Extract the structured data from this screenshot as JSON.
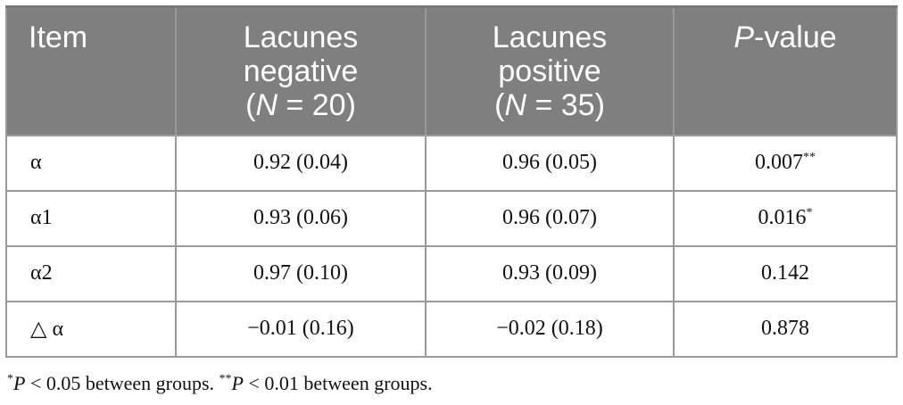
{
  "table": {
    "header": {
      "item": "Item",
      "neg_line1": "Lacunes",
      "neg_line2": "negative",
      "neg_n_open": "(",
      "neg_n_italic": "N",
      "neg_n_rest": " = 20)",
      "pos_line1": "Lacunes",
      "pos_line2": "positive",
      "pos_n_open": "(",
      "pos_n_italic": "N",
      "pos_n_rest": " = 35)",
      "p_italic": "P",
      "p_rest": "-value"
    },
    "rows": [
      {
        "item": "α",
        "negative": "0.92 (0.04)",
        "positive": "0.96 (0.05)",
        "p": "0.007",
        "mark": "**"
      },
      {
        "item": "α1",
        "negative": "0.93 (0.06)",
        "positive": "0.96 (0.07)",
        "p": "0.016",
        "mark": "*"
      },
      {
        "item": "α2",
        "negative": "0.97 (0.10)",
        "positive": "0.93 (0.09)",
        "p": "0.142",
        "mark": ""
      },
      {
        "item": "△ α",
        "negative": "−0.01 (0.16)",
        "positive": "−0.02 (0.18)",
        "p": "0.878",
        "mark": ""
      }
    ]
  },
  "footnote": {
    "mark1": "*",
    "p1": "P",
    "text1": " < 0.05 between groups. ",
    "mark2": "**",
    "p2": "P",
    "text2": " < 0.01 between groups."
  },
  "colors": {
    "header_bg": "#7f7f7f",
    "header_text": "#ffffff",
    "border": "#9a9a9a"
  }
}
